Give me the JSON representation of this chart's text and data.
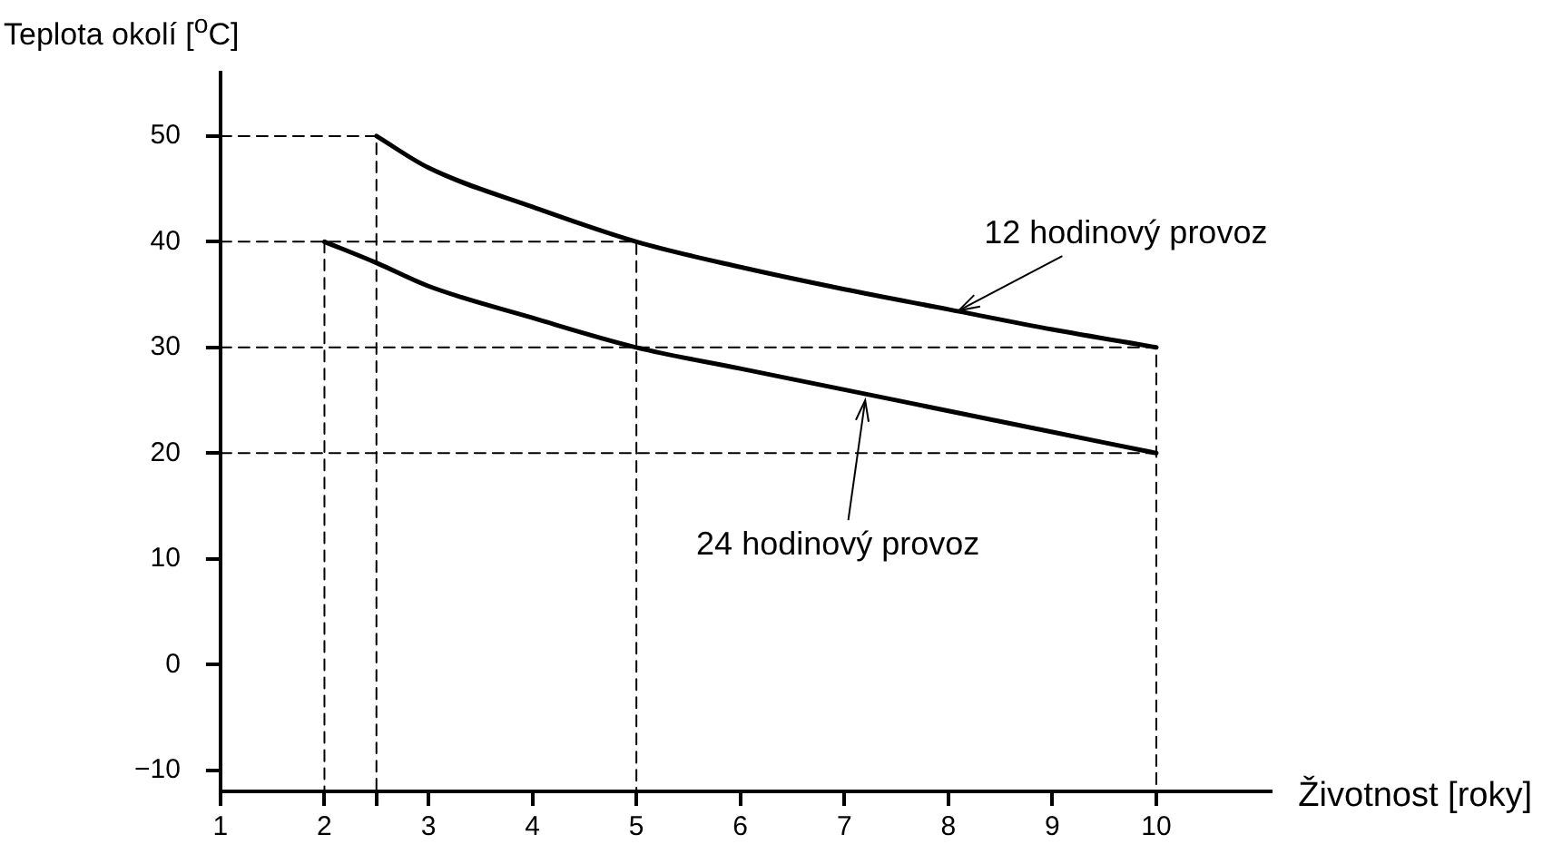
{
  "chart_data": {
    "type": "line",
    "xlabel": "Životnost [roky]",
    "ylabel": "Teplota okolí [$^{o}$C]",
    "xlim": [
      1,
      11.1
    ],
    "xticks": [
      1,
      2,
      {
        "value": 2.5,
        "label": null
      },
      3,
      4,
      5,
      6,
      7,
      8,
      9,
      10
    ],
    "ylim": [
      -12,
      56
    ],
    "yticks": [
      {
        "value": -10,
        "label": "−10"
      },
      0,
      10,
      20,
      30,
      40,
      50
    ],
    "grid": false,
    "legend": false,
    "marker": "none",
    "series": [
      {
        "color": "#000000",
        "x": [
          2.5,
          3,
          4,
          5,
          6,
          7,
          8,
          9,
          10
        ],
        "values": [
          50,
          47,
          43.3,
          40,
          37.6,
          35.5,
          33.6,
          31.7,
          30
        ]
      },
      {
        "color": "#000000",
        "x": [
          2,
          2.5,
          3,
          4,
          5,
          6,
          7,
          8,
          9,
          10
        ],
        "values": [
          40,
          38,
          35.8,
          32.8,
          30,
          28,
          26,
          24,
          22,
          20
        ]
      },
      {
        "color": "#000000",
        "line_style": "dashed",
        "x": [
          1,
          2.5,
          2.5
        ],
        "values": [
          50,
          50,
          -12
        ]
      },
      {
        "color": "#000000",
        "line_style": "dashed",
        "x": [
          1,
          5,
          5
        ],
        "values": [
          40,
          40,
          -12
        ]
      },
      {
        "color": "#000000",
        "line_style": "dashed",
        "x": [
          2,
          2
        ],
        "values": [
          40,
          -12
        ]
      },
      {
        "color": "#000000",
        "line_style": "dashed",
        "x": [
          1,
          10,
          10
        ],
        "values": [
          30,
          30,
          -12
        ]
      },
      {
        "color": "#000000",
        "line_style": "dashed",
        "x": [
          1,
          10
        ],
        "values": [
          20,
          20
        ]
      }
    ],
    "annotations": [
      {
        "text": "12 hodinový provoz",
        "x": 8.1,
        "y": 33.5
      },
      {
        "text": "24 hodinový provoz",
        "x": 7.2,
        "y": 25
      }
    ]
  }
}
